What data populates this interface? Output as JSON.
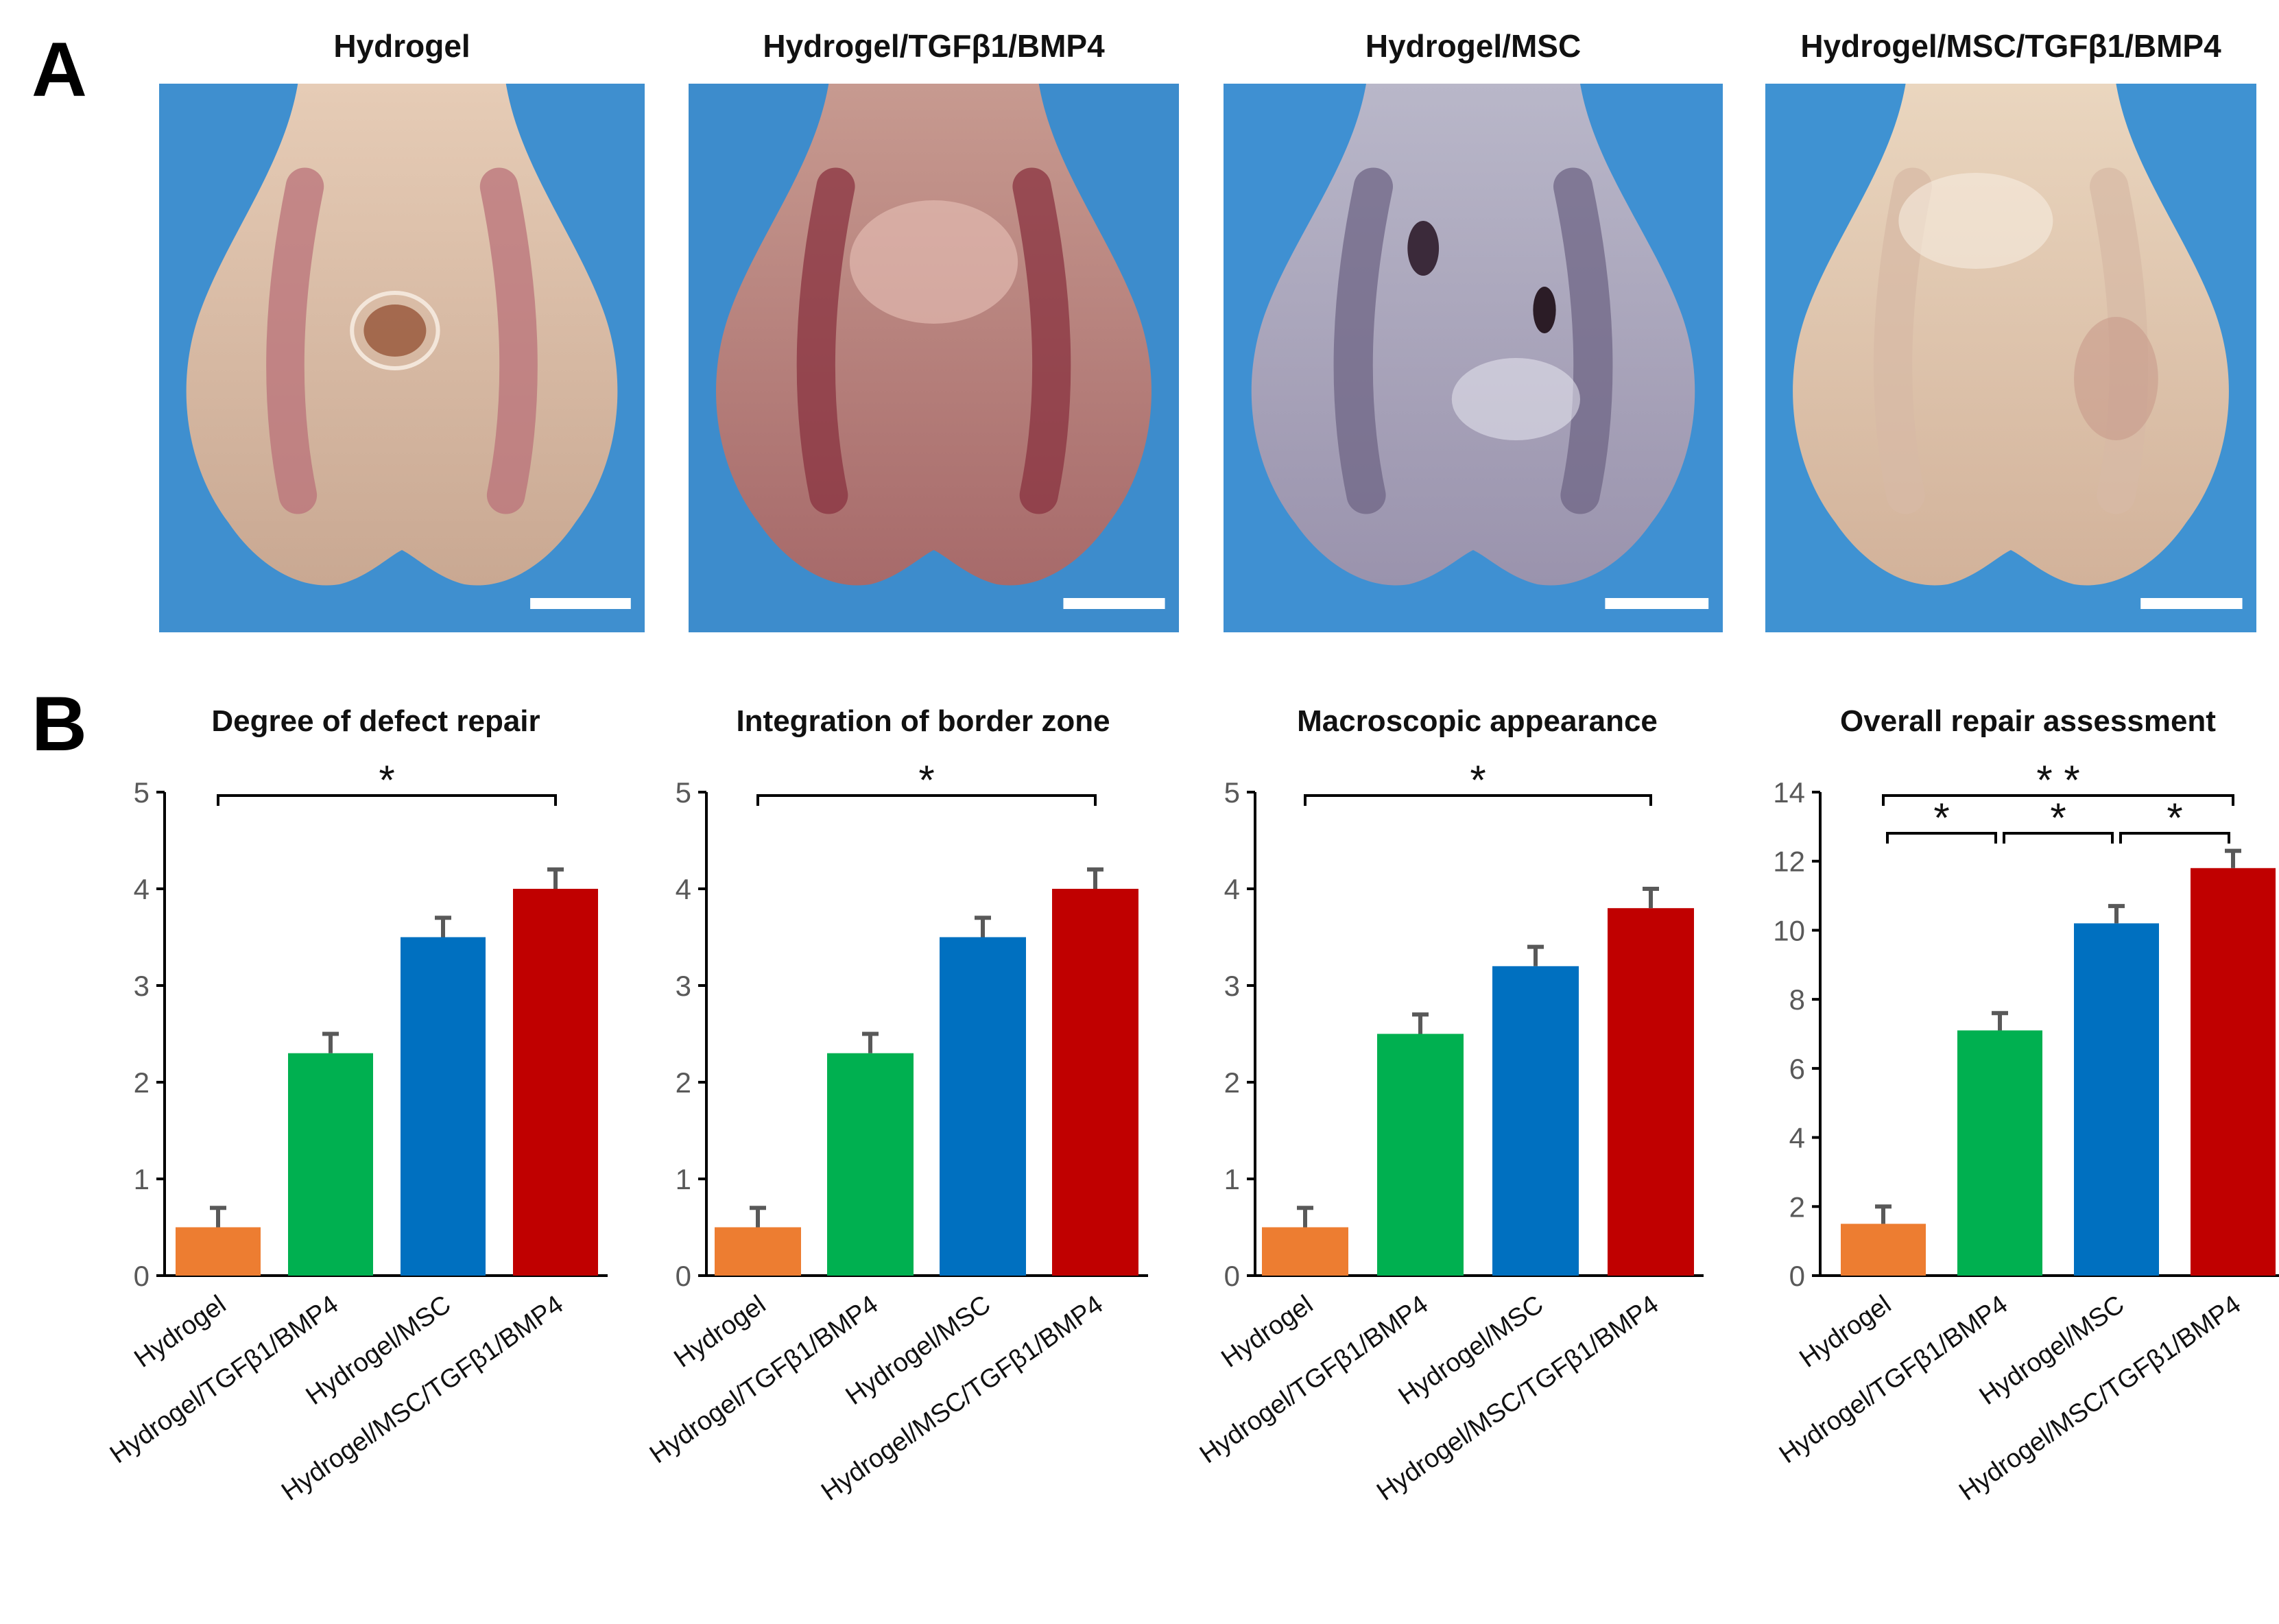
{
  "panels": {
    "a_label": "A",
    "b_label": "B"
  },
  "photos": [
    {
      "title": "Hydrogel",
      "tone": "pale",
      "colors": {
        "bg": "#3f8fcf",
        "tissue": "#e6ccb6",
        "groove": "#b9727a",
        "shadow": "#c9a892"
      }
    },
    {
      "title": "Hydrogel/TGFβ1/BMP4",
      "tone": "red",
      "colors": {
        "bg": "#3d8ccc",
        "tissue": "#c79a90",
        "groove": "#8a3340",
        "shadow": "#a76a6a"
      }
    },
    {
      "title": "Hydrogel/MSC",
      "tone": "bluish",
      "colors": {
        "bg": "#3f90d2",
        "tissue": "#b9b7c9",
        "groove": "#6f6585",
        "shadow": "#9a93ad"
      }
    },
    {
      "title": "Hydrogel/MSC/TGFβ1/BMP4",
      "tone": "smooth",
      "colors": {
        "bg": "#3f92d2",
        "tissue": "#ead6bf",
        "groove": "#d7b9a5",
        "shadow": "#d2b29a"
      }
    }
  ],
  "colors": {
    "Hydrogel": "#ED7D31",
    "Hydrogel/TGFβ1/BMP4": "#00B050",
    "Hydrogel/MSC": "#0070C0",
    "Hydrogel/MSC/TGFβ1/BMP4": "#C00000",
    "error_bar": "#595959",
    "axis": "#000000"
  },
  "chart_data": [
    {
      "type": "bar",
      "title": "Degree of defect repair",
      "categories": [
        "Hydrogel",
        "Hydrogel/TGFβ1/BMP4",
        "Hydrogel/MSC",
        "Hydrogel/MSC/TGFβ1/BMP4"
      ],
      "values": [
        0.5,
        2.3,
        3.5,
        4.0
      ],
      "errors": [
        0.2,
        0.2,
        0.2,
        0.2
      ],
      "ylim": [
        0,
        5
      ],
      "yticks": [
        0,
        1,
        2,
        3,
        4,
        5
      ],
      "significance": [
        {
          "from": 0,
          "to": 3,
          "label": "*"
        }
      ]
    },
    {
      "type": "bar",
      "title": "Integration of border zone",
      "categories": [
        "Hydrogel",
        "Hydrogel/TGFβ1/BMP4",
        "Hydrogel/MSC",
        "Hydrogel/MSC/TGFβ1/BMP4"
      ],
      "values": [
        0.5,
        2.3,
        3.5,
        4.0
      ],
      "errors": [
        0.2,
        0.2,
        0.2,
        0.2
      ],
      "ylim": [
        0,
        5
      ],
      "yticks": [
        0,
        1,
        2,
        3,
        4,
        5
      ],
      "significance": [
        {
          "from": 0,
          "to": 3,
          "label": "*"
        }
      ]
    },
    {
      "type": "bar",
      "title": "Macroscopic appearance",
      "categories": [
        "Hydrogel",
        "Hydrogel/TGFβ1/BMP4",
        "Hydrogel/MSC",
        "Hydrogel/MSC/TGFβ1/BMP4"
      ],
      "values": [
        0.5,
        2.5,
        3.2,
        3.8
      ],
      "errors": [
        0.2,
        0.2,
        0.2,
        0.2
      ],
      "ylim": [
        0,
        5
      ],
      "yticks": [
        0,
        1,
        2,
        3,
        4,
        5
      ],
      "significance": [
        {
          "from": 0,
          "to": 3,
          "label": "*"
        }
      ]
    },
    {
      "type": "bar",
      "title": "Overall repair assessment",
      "categories": [
        "Hydrogel",
        "Hydrogel/TGFβ1/BMP4",
        "Hydrogel/MSC",
        "Hydrogel/MSC/TGFβ1/BMP4"
      ],
      "values": [
        1.5,
        7.1,
        10.2,
        11.8
      ],
      "errors": [
        0.5,
        0.5,
        0.5,
        0.5
      ],
      "ylim": [
        0,
        14
      ],
      "yticks": [
        0,
        2,
        4,
        6,
        8,
        10,
        12,
        14
      ],
      "significance": [
        {
          "from": 0,
          "to": 3,
          "label": "* *"
        },
        {
          "from": 0,
          "to": 1,
          "label": "*"
        },
        {
          "from": 1,
          "to": 2,
          "label": "*"
        },
        {
          "from": 2,
          "to": 3,
          "label": "*"
        }
      ]
    }
  ]
}
